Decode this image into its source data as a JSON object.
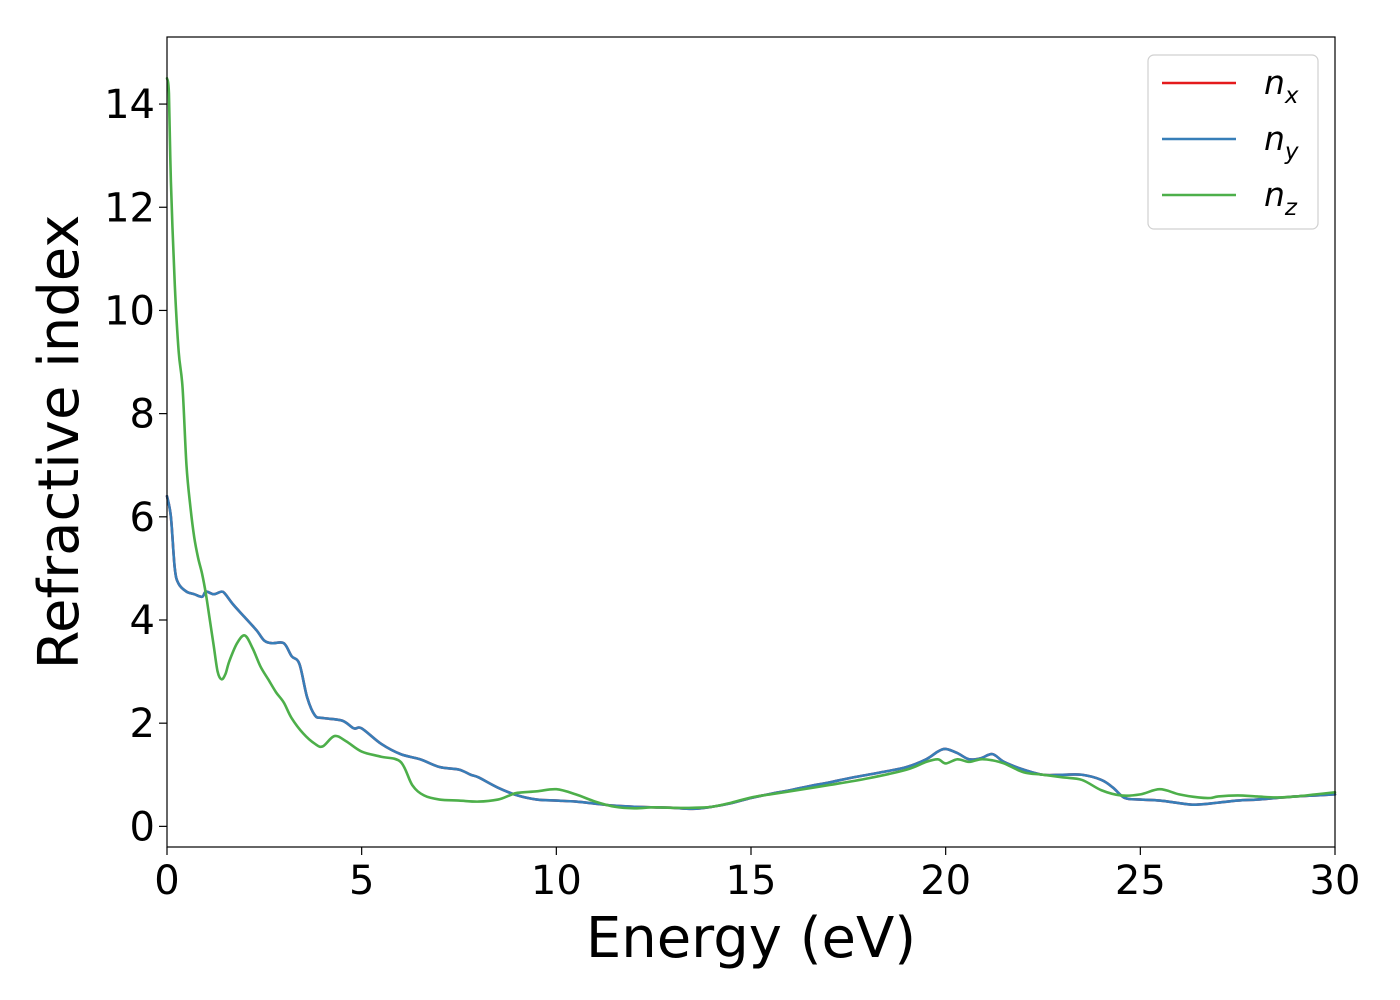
{
  "chart_data": {
    "type": "line",
    "title": "",
    "xlabel": "Energy (eV)",
    "ylabel": "Refractive index",
    "xlim": [
      0,
      30
    ],
    "ylim": [
      -0.4,
      15.3
    ],
    "xticks": [
      0,
      5,
      10,
      15,
      20,
      25,
      30
    ],
    "yticks": [
      0,
      2,
      4,
      6,
      8,
      10,
      12,
      14
    ],
    "grid": false,
    "legend_position": "top-right",
    "series": [
      {
        "name": "n_x",
        "label_main": "n",
        "label_sub": "x",
        "color": "#e41a1c",
        "x": [
          0,
          0.1,
          0.2,
          0.3,
          0.5,
          0.7,
          0.9,
          1.0,
          1.2,
          1.4,
          1.5,
          1.7,
          2.0,
          2.3,
          2.5,
          2.7,
          3.0,
          3.2,
          3.4,
          3.6,
          3.8,
          4.0,
          4.5,
          4.8,
          5.0,
          5.5,
          6.0,
          6.5,
          7.0,
          7.5,
          7.8,
          8.0,
          8.5,
          9.0,
          9.5,
          10.0,
          10.5,
          11.0,
          11.5,
          12.0,
          12.5,
          13.0,
          13.5,
          14.0,
          14.5,
          15.0,
          15.5,
          16.0,
          16.5,
          17.0,
          17.5,
          18.0,
          18.5,
          19.0,
          19.5,
          19.8,
          20.0,
          20.3,
          20.6,
          20.9,
          21.2,
          21.5,
          22.0,
          22.5,
          23.0,
          23.5,
          24.0,
          24.3,
          24.6,
          25.0,
          25.5,
          26.0,
          26.4,
          27.0,
          27.5,
          28.0,
          28.5,
          29.0,
          29.5,
          30.0
        ],
        "values": [
          6.4,
          6.0,
          5.0,
          4.7,
          4.55,
          4.5,
          4.45,
          4.55,
          4.5,
          4.55,
          4.5,
          4.3,
          4.05,
          3.8,
          3.6,
          3.55,
          3.55,
          3.3,
          3.15,
          2.5,
          2.15,
          2.1,
          2.05,
          1.9,
          1.9,
          1.6,
          1.4,
          1.3,
          1.15,
          1.1,
          1.0,
          0.95,
          0.75,
          0.6,
          0.52,
          0.5,
          0.48,
          0.44,
          0.4,
          0.38,
          0.37,
          0.36,
          0.34,
          0.38,
          0.45,
          0.55,
          0.63,
          0.7,
          0.78,
          0.85,
          0.93,
          1.0,
          1.07,
          1.15,
          1.3,
          1.45,
          1.5,
          1.42,
          1.3,
          1.32,
          1.4,
          1.25,
          1.1,
          1.0,
          1.0,
          1.0,
          0.9,
          0.75,
          0.55,
          0.52,
          0.5,
          0.45,
          0.42,
          0.46,
          0.5,
          0.52,
          0.55,
          0.58,
          0.6,
          0.62
        ]
      },
      {
        "name": "n_y",
        "label_main": "n",
        "label_sub": "y",
        "color": "#377eb8",
        "x": [
          0,
          0.1,
          0.2,
          0.3,
          0.5,
          0.7,
          0.9,
          1.0,
          1.2,
          1.4,
          1.5,
          1.7,
          2.0,
          2.3,
          2.5,
          2.7,
          3.0,
          3.2,
          3.4,
          3.6,
          3.8,
          4.0,
          4.5,
          4.8,
          5.0,
          5.5,
          6.0,
          6.5,
          7.0,
          7.5,
          7.8,
          8.0,
          8.5,
          9.0,
          9.5,
          10.0,
          10.5,
          11.0,
          11.5,
          12.0,
          12.5,
          13.0,
          13.5,
          14.0,
          14.5,
          15.0,
          15.5,
          16.0,
          16.5,
          17.0,
          17.5,
          18.0,
          18.5,
          19.0,
          19.5,
          19.8,
          20.0,
          20.3,
          20.6,
          20.9,
          21.2,
          21.5,
          22.0,
          22.5,
          23.0,
          23.5,
          24.0,
          24.3,
          24.6,
          25.0,
          25.5,
          26.0,
          26.4,
          27.0,
          27.5,
          28.0,
          28.5,
          29.0,
          29.5,
          30.0
        ],
        "values": [
          6.4,
          6.0,
          5.0,
          4.7,
          4.55,
          4.5,
          4.45,
          4.55,
          4.5,
          4.55,
          4.5,
          4.3,
          4.05,
          3.8,
          3.6,
          3.55,
          3.55,
          3.3,
          3.15,
          2.5,
          2.15,
          2.1,
          2.05,
          1.9,
          1.9,
          1.6,
          1.4,
          1.3,
          1.15,
          1.1,
          1.0,
          0.95,
          0.75,
          0.6,
          0.52,
          0.5,
          0.48,
          0.44,
          0.4,
          0.38,
          0.37,
          0.36,
          0.34,
          0.38,
          0.45,
          0.55,
          0.63,
          0.7,
          0.78,
          0.85,
          0.93,
          1.0,
          1.07,
          1.15,
          1.3,
          1.45,
          1.5,
          1.42,
          1.3,
          1.32,
          1.4,
          1.25,
          1.1,
          1.0,
          1.0,
          1.0,
          0.9,
          0.75,
          0.55,
          0.52,
          0.5,
          0.45,
          0.42,
          0.46,
          0.5,
          0.52,
          0.55,
          0.58,
          0.6,
          0.62
        ]
      },
      {
        "name": "n_z",
        "label_main": "n",
        "label_sub": "z",
        "color": "#4daf4a",
        "x": [
          0,
          0.05,
          0.1,
          0.2,
          0.3,
          0.4,
          0.5,
          0.6,
          0.7,
          0.8,
          0.9,
          1.0,
          1.1,
          1.2,
          1.3,
          1.4,
          1.5,
          1.6,
          1.8,
          2.0,
          2.2,
          2.4,
          2.6,
          2.8,
          3.0,
          3.2,
          3.5,
          3.8,
          4.0,
          4.3,
          4.6,
          5.0,
          5.5,
          6.0,
          6.3,
          6.6,
          7.0,
          7.5,
          8.0,
          8.5,
          8.8,
          9.0,
          9.5,
          10.0,
          10.5,
          11.0,
          11.5,
          12.0,
          12.5,
          13.0,
          13.5,
          14.0,
          14.5,
          15.0,
          15.5,
          16.0,
          17.0,
          18.0,
          19.0,
          19.5,
          19.8,
          20.0,
          20.3,
          20.6,
          20.9,
          21.2,
          21.5,
          22.0,
          22.5,
          23.0,
          23.5,
          24.0,
          24.5,
          25.0,
          25.5,
          26.0,
          26.5,
          26.8,
          27.0,
          27.5,
          28.0,
          28.5,
          29.0,
          29.5,
          30.0
        ],
        "values": [
          14.5,
          14.2,
          12.5,
          10.5,
          9.2,
          8.5,
          7.0,
          6.2,
          5.6,
          5.2,
          4.9,
          4.5,
          4.0,
          3.5,
          3.0,
          2.85,
          2.95,
          3.2,
          3.55,
          3.7,
          3.45,
          3.1,
          2.85,
          2.6,
          2.4,
          2.1,
          1.8,
          1.6,
          1.55,
          1.75,
          1.65,
          1.45,
          1.35,
          1.25,
          0.8,
          0.6,
          0.52,
          0.5,
          0.48,
          0.52,
          0.6,
          0.65,
          0.68,
          0.72,
          0.62,
          0.48,
          0.38,
          0.35,
          0.37,
          0.36,
          0.36,
          0.38,
          0.46,
          0.56,
          0.62,
          0.68,
          0.8,
          0.93,
          1.1,
          1.25,
          1.3,
          1.22,
          1.3,
          1.25,
          1.3,
          1.28,
          1.22,
          1.05,
          1.0,
          0.95,
          0.9,
          0.7,
          0.6,
          0.62,
          0.72,
          0.62,
          0.56,
          0.55,
          0.58,
          0.6,
          0.58,
          0.56,
          0.58,
          0.62,
          0.66
        ]
      }
    ]
  }
}
